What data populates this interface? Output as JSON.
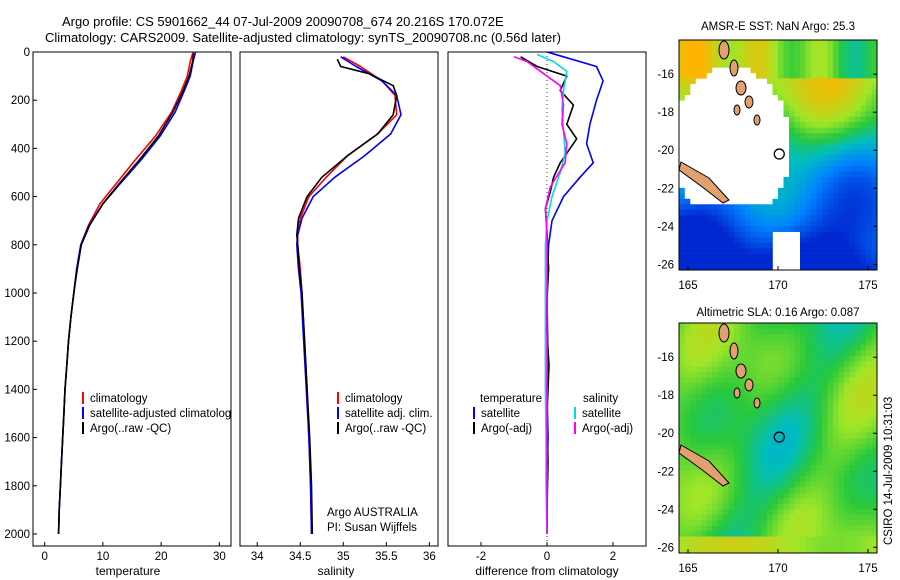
{
  "header": {
    "line1": "Argo profile: CS 5901662_44 07-Jul-2009 20090708_674 20.216S 170.072E",
    "line2": "Climatology: CARS2009. Satellite-adjusted climatology: synTS_20090708.nc (0.56d later)"
  },
  "footer": {
    "stamp": "CSIRO 14-Jul-2009 10:31:03"
  },
  "colors": {
    "clim": "#ff0000",
    "sat": "#0000ff",
    "argo": "#000000",
    "sat_s": "#00dddd",
    "argo_s": "#ff00ff"
  },
  "chart_data": [
    {
      "type": "line",
      "id": "temperature",
      "xlabel": "temperature",
      "ylabel": "",
      "xlim": [
        -2,
        32
      ],
      "ylim": [
        2050,
        0
      ],
      "xticks": [
        0,
        10,
        20,
        30
      ],
      "yticks": [
        0,
        200,
        400,
        600,
        800,
        1000,
        1200,
        1400,
        1600,
        1800,
        2000
      ],
      "legend": [
        "climatology",
        "satellite-adjusted climatology",
        "Argo(..raw -QC)"
      ],
      "series": [
        {
          "name": "climatology",
          "color": "red",
          "points": [
            [
              25.5,
              0
            ],
            [
              25,
              40
            ],
            [
              24.5,
              100
            ],
            [
              23.5,
              160
            ],
            [
              21.8,
              250
            ],
            [
              19,
              350
            ],
            [
              15.5,
              450
            ],
            [
              12.5,
              540
            ],
            [
              9.5,
              630
            ],
            [
              7.5,
              720
            ],
            [
              6.2,
              800
            ],
            [
              5.5,
              900
            ],
            [
              5,
              1000
            ],
            [
              4.5,
              1100
            ],
            [
              4.1,
              1200
            ],
            [
              3.8,
              1300
            ],
            [
              3.5,
              1400
            ],
            [
              3.3,
              1500
            ],
            [
              3.1,
              1600
            ],
            [
              2.9,
              1700
            ],
            [
              2.7,
              1800
            ],
            [
              2.5,
              1900
            ],
            [
              2.4,
              2000
            ]
          ]
        },
        {
          "name": "satellite-adjusted climatology",
          "color": "blue",
          "points": [
            [
              25.9,
              0
            ],
            [
              25.5,
              40
            ],
            [
              25,
              100
            ],
            [
              24,
              160
            ],
            [
              22.4,
              250
            ],
            [
              19.8,
              350
            ],
            [
              16.5,
              450
            ],
            [
              13.2,
              540
            ],
            [
              10,
              630
            ],
            [
              7.6,
              720
            ],
            [
              6.2,
              800
            ],
            [
              5.5,
              900
            ],
            [
              5,
              1000
            ],
            [
              4.5,
              1100
            ],
            [
              4.1,
              1200
            ],
            [
              3.8,
              1300
            ],
            [
              3.5,
              1400
            ],
            [
              3.3,
              1500
            ],
            [
              3.1,
              1600
            ],
            [
              2.9,
              1700
            ],
            [
              2.7,
              1800
            ],
            [
              2.5,
              1900
            ],
            [
              2.4,
              2000
            ]
          ]
        },
        {
          "name": "Argo(..raw -QC)",
          "color": "black",
          "points": [
            [
              25.6,
              5
            ],
            [
              25.4,
              40
            ],
            [
              24.8,
              100
            ],
            [
              23.8,
              160
            ],
            [
              22,
              250
            ],
            [
              19.5,
              350
            ],
            [
              16.2,
              450
            ],
            [
              13,
              540
            ],
            [
              10,
              630
            ],
            [
              7.7,
              720
            ],
            [
              6.3,
              800
            ],
            [
              5.6,
              900
            ],
            [
              5,
              1000
            ],
            [
              4.5,
              1100
            ],
            [
              4.1,
              1200
            ],
            [
              3.8,
              1300
            ],
            [
              3.5,
              1400
            ],
            [
              3.3,
              1500
            ],
            [
              3.1,
              1600
            ],
            [
              2.9,
              1700
            ],
            [
              2.7,
              1800
            ],
            [
              2.5,
              1900
            ],
            [
              2.4,
              2000
            ]
          ]
        }
      ]
    },
    {
      "type": "line",
      "id": "salinity",
      "xlabel": "salinity",
      "ylabel": "",
      "xlim": [
        33.8,
        36.1
      ],
      "ylim": [
        2050,
        0
      ],
      "xticks": [
        34,
        34.5,
        35,
        35.5,
        36
      ],
      "yticks": [],
      "legend": [
        "climatology",
        "satellite adj. clim.",
        "Argo(..raw -QC)"
      ],
      "series": [
        {
          "name": "climatology",
          "color": "red",
          "points": [
            [
              35,
              20
            ],
            [
              35.2,
              60
            ],
            [
              35.45,
              120
            ],
            [
              35.6,
              180
            ],
            [
              35.62,
              260
            ],
            [
              35.4,
              340
            ],
            [
              35.05,
              430
            ],
            [
              34.8,
              520
            ],
            [
              34.6,
              600
            ],
            [
              34.5,
              690
            ],
            [
              34.47,
              760
            ],
            [
              34.47,
              800
            ],
            [
              34.5,
              900
            ],
            [
              34.52,
              1000
            ],
            [
              34.55,
              1200
            ],
            [
              34.58,
              1400
            ],
            [
              34.6,
              1600
            ],
            [
              34.62,
              1800
            ],
            [
              34.63,
              2000
            ]
          ]
        },
        {
          "name": "satellite adj. clim.",
          "color": "blue",
          "points": [
            [
              34.97,
              20
            ],
            [
              35.15,
              60
            ],
            [
              35.45,
              120
            ],
            [
              35.62,
              180
            ],
            [
              35.67,
              260
            ],
            [
              35.55,
              340
            ],
            [
              35.25,
              430
            ],
            [
              34.9,
              520
            ],
            [
              34.65,
              600
            ],
            [
              34.52,
              690
            ],
            [
              34.47,
              760
            ],
            [
              34.46,
              800
            ],
            [
              34.48,
              900
            ],
            [
              34.51,
              1000
            ],
            [
              34.54,
              1200
            ],
            [
              34.57,
              1400
            ],
            [
              34.6,
              1600
            ],
            [
              34.62,
              1800
            ],
            [
              34.63,
              2000
            ]
          ]
        },
        {
          "name": "Argo(..raw -QC)",
          "color": "black",
          "points": [
            [
              34.93,
              30
            ],
            [
              34.97,
              60
            ],
            [
              35.3,
              90
            ],
            [
              35.58,
              140
            ],
            [
              35.62,
              180
            ],
            [
              35.58,
              260
            ],
            [
              35.4,
              340
            ],
            [
              35.05,
              430
            ],
            [
              34.75,
              520
            ],
            [
              34.58,
              600
            ],
            [
              34.48,
              690
            ],
            [
              34.46,
              760
            ],
            [
              34.47,
              800
            ],
            [
              34.49,
              900
            ],
            [
              34.52,
              1000
            ],
            [
              34.55,
              1200
            ],
            [
              34.58,
              1400
            ],
            [
              34.61,
              1600
            ],
            [
              34.63,
              1800
            ],
            [
              34.64,
              2000
            ]
          ]
        }
      ],
      "annotations": [
        "Argo AUSTRALIA",
        "PI: Susan Wijffels"
      ]
    },
    {
      "type": "line",
      "id": "difference",
      "xlabel": "difference from climatology",
      "ylabel": "",
      "xlim": [
        -3,
        3
      ],
      "ylim": [
        2050,
        0
      ],
      "xticks": [
        -2,
        0,
        2
      ],
      "yticks": [],
      "legend_titles": [
        "temperature",
        "salinity"
      ],
      "legend": [
        "satellite",
        "Argo(-adj)",
        "satellite",
        "Argo(-adj)"
      ],
      "series": [
        {
          "name": "temperature satellite",
          "color": "blue",
          "points": [
            [
              0,
              0
            ],
            [
              0.5,
              20
            ],
            [
              1.5,
              60
            ],
            [
              1.7,
              120
            ],
            [
              1.5,
              200
            ],
            [
              1.3,
              300
            ],
            [
              1.2,
              380
            ],
            [
              1.4,
              460
            ],
            [
              1,
              520
            ],
            [
              0.5,
              600
            ],
            [
              0.15,
              700
            ],
            [
              0.05,
              800
            ],
            [
              0,
              1000
            ],
            [
              0.02,
              1200
            ],
            [
              0,
              1400
            ],
            [
              0.03,
              1600
            ],
            [
              0,
              1800
            ],
            [
              0,
              2000
            ]
          ]
        },
        {
          "name": "temperature Argo(-adj)",
          "color": "black",
          "points": [
            [
              -0.8,
              20
            ],
            [
              -0.3,
              60
            ],
            [
              0.6,
              100
            ],
            [
              0.4,
              160
            ],
            [
              0.8,
              220
            ],
            [
              0.6,
              300
            ],
            [
              0.9,
              360
            ],
            [
              0.4,
              460
            ],
            [
              0.2,
              520
            ],
            [
              0.1,
              580
            ],
            [
              -0.05,
              650
            ],
            [
              0,
              750
            ],
            [
              0.05,
              900
            ],
            [
              -0.03,
              1100
            ],
            [
              0.06,
              1300
            ],
            [
              0,
              1500
            ],
            [
              0.03,
              1700
            ],
            [
              0,
              1900
            ],
            [
              0,
              2000
            ]
          ]
        },
        {
          "name": "salinity satellite",
          "color": "cyan",
          "points": [
            [
              -0.3,
              10
            ],
            [
              0.2,
              40
            ],
            [
              0.6,
              80
            ],
            [
              0.5,
              160
            ],
            [
              0.45,
              240
            ],
            [
              0.5,
              320
            ],
            [
              0.55,
              420
            ],
            [
              0.4,
              500
            ],
            [
              0.15,
              600
            ],
            [
              0,
              700
            ],
            [
              -0.05,
              800
            ],
            [
              -0.05,
              1000
            ],
            [
              -0.05,
              1200
            ],
            [
              -0.05,
              1400
            ],
            [
              -0.03,
              1600
            ],
            [
              -0.03,
              1800
            ],
            [
              0,
              2000
            ]
          ]
        },
        {
          "name": "salinity Argo(-adj)",
          "color": "magenta",
          "points": [
            [
              -1,
              20
            ],
            [
              -0.6,
              40
            ],
            [
              -0.2,
              80
            ],
            [
              0.4,
              140
            ],
            [
              0.5,
              220
            ],
            [
              0.45,
              300
            ],
            [
              0.6,
              380
            ],
            [
              0.55,
              460
            ],
            [
              0.1,
              560
            ],
            [
              -0.05,
              650
            ],
            [
              0,
              760
            ],
            [
              0,
              1000
            ],
            [
              0,
              1500
            ],
            [
              0,
              2000
            ]
          ]
        }
      ]
    },
    {
      "type": "heatmap",
      "id": "sst-map",
      "title": "AMSR-E SST: NaN Argo: 25.3",
      "xlim": [
        164.5,
        175.5
      ],
      "ylim": [
        -26.3,
        -14.2
      ],
      "xticks": [
        165,
        170,
        175
      ],
      "yticks": [
        -16,
        -18,
        -20,
        -22,
        -24,
        -26
      ],
      "marker": {
        "lon": 170.07,
        "lat": -20.2
      }
    },
    {
      "type": "heatmap",
      "id": "sla-map",
      "title": "Altimetric SLA: 0.16 Argo: 0.087",
      "xlim": [
        164.5,
        175.5
      ],
      "ylim": [
        -26.3,
        -14.2
      ],
      "xticks": [
        165,
        170,
        175
      ],
      "yticks": [
        -16,
        -18,
        -20,
        -22,
        -24,
        -26
      ],
      "marker": {
        "lon": 170.07,
        "lat": -20.2
      }
    }
  ]
}
